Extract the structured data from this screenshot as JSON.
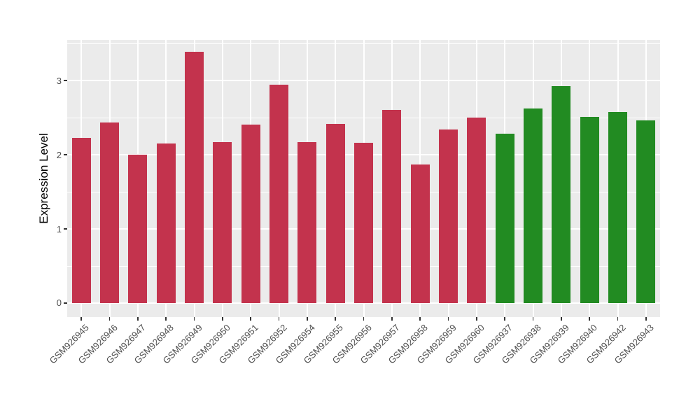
{
  "chart_data": {
    "type": "bar",
    "title": "",
    "xlabel": "",
    "ylabel": "Expression Level",
    "categories": [
      "GSM926945",
      "GSM926946",
      "GSM926947",
      "GSM926948",
      "GSM926949",
      "GSM926950",
      "GSM926951",
      "GSM926952",
      "GSM926954",
      "GSM926955",
      "GSM926956",
      "GSM926957",
      "GSM926958",
      "GSM926959",
      "GSM926960",
      "GSM926937",
      "GSM926938",
      "GSM926939",
      "GSM926940",
      "GSM926942",
      "GSM926943"
    ],
    "values": [
      2.23,
      2.44,
      2.0,
      2.15,
      3.39,
      2.17,
      2.41,
      2.95,
      2.17,
      2.42,
      2.16,
      2.61,
      1.87,
      2.34,
      2.5,
      2.28,
      2.62,
      2.93,
      2.51,
      2.58,
      2.46
    ],
    "bar_groups": [
      "red",
      "red",
      "red",
      "red",
      "red",
      "red",
      "red",
      "red",
      "red",
      "red",
      "red",
      "red",
      "red",
      "red",
      "red",
      "green",
      "green",
      "green",
      "green",
      "green",
      "green"
    ],
    "group_colors": {
      "red": "#C3334D",
      "green": "#228B22"
    },
    "yticks": [
      0,
      1,
      2,
      3
    ],
    "yticks_minor": [
      0.5,
      1.5,
      2.5,
      3.5
    ],
    "ylim": [
      -0.19,
      3.55
    ],
    "bar_width_fraction": 0.67,
    "legend": "none",
    "grid": "on",
    "panel_bg": "#EBEBEB",
    "grid_color": "#FFFFFF",
    "tick_label_color": "#4D4D4D",
    "axis_title_color": "#000000"
  }
}
